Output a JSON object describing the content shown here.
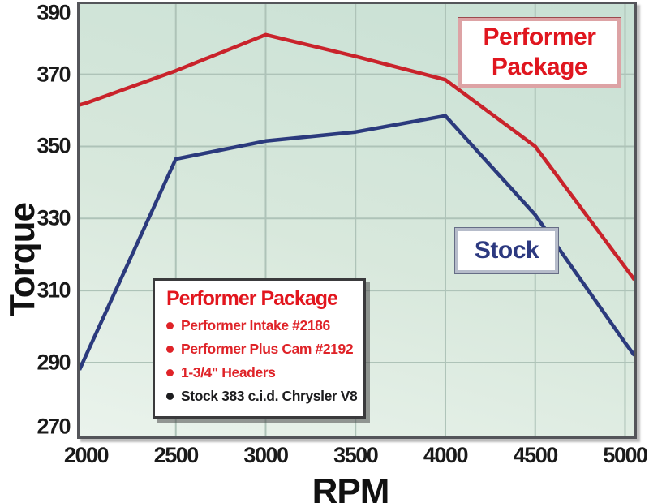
{
  "chart_data": {
    "type": "line",
    "title": "",
    "xlabel": "RPM",
    "ylabel": "Torque",
    "x_ticks": [
      2000,
      2500,
      3000,
      3500,
      4000,
      4500,
      5000
    ],
    "y_ticks": [
      390,
      370,
      350,
      330,
      310,
      290,
      270
    ],
    "x_range": [
      1964,
      5052
    ],
    "y_range": [
      269.5,
      389.5
    ],
    "grid": true,
    "legend_position": "labels-on-plot",
    "series": [
      {
        "name": "Performer Package",
        "color": "#c9232b",
        "points": [
          [
            1964,
            361.5
          ],
          [
            2000,
            362
          ],
          [
            2500,
            371
          ],
          [
            3000,
            381
          ],
          [
            3500,
            375
          ],
          [
            4000,
            368.5
          ],
          [
            4500,
            350
          ],
          [
            5000,
            316.5
          ],
          [
            5052,
            313
          ]
        ]
      },
      {
        "name": "Stock",
        "color": "#2b3a7d",
        "points": [
          [
            1964,
            288
          ],
          [
            2000,
            292
          ],
          [
            2500,
            346.5
          ],
          [
            3000,
            351.5
          ],
          [
            3500,
            354
          ],
          [
            4000,
            358.5
          ],
          [
            4500,
            331
          ],
          [
            5000,
            295.5
          ],
          [
            5052,
            292
          ]
        ]
      }
    ],
    "values_at_ticks": {
      "performer_package": [
        362,
        371,
        381,
        375,
        369,
        350,
        317
      ],
      "stock": [
        292,
        347,
        352,
        354,
        359,
        331,
        296
      ]
    }
  },
  "labels": {
    "y_axis_title": "Torque",
    "x_axis_title": "RPM",
    "performer_box_line1": "Performer",
    "performer_box_line2": "Package",
    "stock_box": "Stock"
  },
  "info_box": {
    "title": "Performer Package",
    "items": [
      {
        "text": "Performer Intake #2186",
        "color": "#df2328"
      },
      {
        "text": "Performer Plus Cam #2192",
        "color": "#df2328"
      },
      {
        "text": "1-3/4\" Headers",
        "color": "#df2328"
      },
      {
        "text": "Stock 383 c.i.d. Chrysler V8",
        "color": "#1d1d1f"
      }
    ]
  },
  "colors": {
    "grid": "#aec3b8",
    "plot_bg_top": "#c8e0d4",
    "plot_bg_bottom": "#eaf3ec",
    "plot_border": "#54555a",
    "performer_red": "#c9232b",
    "stock_blue": "#2b3a7d",
    "text_red": "#e0161f",
    "text_blue": "#2c3980",
    "axis_text": "#1a1a1a"
  }
}
